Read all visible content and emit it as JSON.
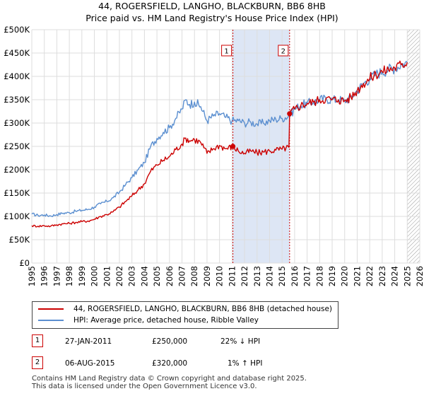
{
  "header": {
    "title": "44, ROGERSFIELD, LANGHO, BLACKBURN, BB6 8HB",
    "subtitle": "Price paid vs. HM Land Registry's House Price Index (HPI)"
  },
  "colors": {
    "red": "#cc0000",
    "blue": "#5b8fd0",
    "shade": "#dde6f5",
    "grid": "#dddddd"
  },
  "chart_data": {
    "type": "line",
    "title": "44, ROGERSFIELD, LANGHO, BLACKBURN, BB6 8HB",
    "xlim": [
      1995,
      2026
    ],
    "ylim": [
      0,
      500000
    ],
    "y_ticks": [
      0,
      50000,
      100000,
      150000,
      200000,
      250000,
      300000,
      350000,
      400000,
      450000,
      500000
    ],
    "y_tick_labels": [
      "£0",
      "£50K",
      "£100K",
      "£150K",
      "£200K",
      "£250K",
      "£300K",
      "£350K",
      "£400K",
      "£450K",
      "£500K"
    ],
    "x_ticks": [
      1995,
      1996,
      1997,
      1998,
      1999,
      2000,
      2001,
      2002,
      2003,
      2004,
      2005,
      2006,
      2007,
      2008,
      2009,
      2010,
      2011,
      2012,
      2013,
      2014,
      2015,
      2016,
      2017,
      2018,
      2019,
      2020,
      2021,
      2022,
      2023,
      2024,
      2025,
      2026
    ],
    "x_tick_labels": [
      "1995",
      "1996",
      "1997",
      "1998",
      "1999",
      "2000",
      "2001",
      "2002",
      "2003",
      "2004",
      "2005",
      "2006",
      "2007",
      "2008",
      "2009",
      "2010",
      "2011",
      "2012",
      "2013",
      "2014",
      "2015",
      "2016",
      "2017",
      "2018",
      "2019",
      "2020",
      "2021",
      "2022",
      "2023",
      "2024",
      "2025",
      "2026"
    ],
    "shaded_period": [
      2011.07,
      2015.6
    ],
    "future_hatch_from": 2025.0,
    "series": [
      {
        "name": "HPI: Average price, detached house, Ribble Valley",
        "color": "#5b8fd0",
        "x": [
          1995.0,
          1995.5,
          1996.0,
          1996.5,
          1997.0,
          1997.5,
          1998.0,
          1998.5,
          1999.0,
          1999.5,
          2000.0,
          2000.5,
          2001.0,
          2001.5,
          2002.0,
          2002.5,
          2003.0,
          2003.5,
          2004.0,
          2004.5,
          2005.0,
          2005.5,
          2006.0,
          2006.5,
          2007.0,
          2007.3,
          2007.6,
          2008.0,
          2008.5,
          2009.0,
          2009.5,
          2010.0,
          2010.5,
          2011.0,
          2011.5,
          2012.0,
          2012.5,
          2013.0,
          2013.5,
          2014.0,
          2014.5,
          2015.0,
          2015.6,
          2016.0,
          2016.5,
          2017.0,
          2017.5,
          2018.0,
          2018.5,
          2019.0,
          2019.5,
          2020.0,
          2020.5,
          2021.0,
          2021.5,
          2022.0,
          2022.5,
          2023.0,
          2023.5,
          2024.0,
          2024.5,
          2025.0
        ],
        "values": [
          105000,
          102000,
          103000,
          101000,
          104000,
          107000,
          108000,
          111000,
          113000,
          115000,
          120000,
          127000,
          132000,
          140000,
          152000,
          168000,
          183000,
          200000,
          215000,
          250000,
          267000,
          280000,
          290000,
          310000,
          330000,
          350000,
          340000,
          345000,
          335000,
          305000,
          315000,
          320000,
          312000,
          305000,
          305000,
          300000,
          302000,
          298000,
          300000,
          305000,
          308000,
          310000,
          316000,
          330000,
          338000,
          342000,
          345000,
          350000,
          352000,
          350000,
          350000,
          348000,
          355000,
          370000,
          385000,
          395000,
          405000,
          410000,
          415000,
          418000,
          425000,
          430000
        ]
      },
      {
        "name": "44, ROGERSFIELD, LANGHO, BLACKBURN, BB6 8HB (detached house)",
        "color": "#cc0000",
        "x": [
          1995.0,
          1995.5,
          1996.0,
          1996.5,
          1997.0,
          1997.5,
          1998.0,
          1998.5,
          1999.0,
          1999.5,
          2000.0,
          2000.5,
          2001.0,
          2001.5,
          2002.0,
          2002.5,
          2003.0,
          2003.5,
          2004.0,
          2004.5,
          2005.0,
          2005.5,
          2006.0,
          2006.5,
          2007.0,
          2007.3,
          2007.6,
          2008.0,
          2008.5,
          2009.0,
          2009.5,
          2010.0,
          2010.5,
          2011.07,
          2011.5,
          2012.0,
          2012.5,
          2013.0,
          2013.5,
          2014.0,
          2014.5,
          2015.0,
          2015.55,
          2015.6,
          2016.0,
          2016.5,
          2017.0,
          2017.5,
          2018.0,
          2018.5,
          2019.0,
          2019.5,
          2020.0,
          2020.5,
          2021.0,
          2021.5,
          2022.0,
          2022.5,
          2023.0,
          2023.5,
          2024.0,
          2024.5,
          2025.0
        ],
        "values": [
          80000,
          79000,
          80000,
          79000,
          82000,
          84000,
          85000,
          87000,
          89000,
          90000,
          94000,
          100000,
          104000,
          110000,
          120000,
          132000,
          144000,
          157000,
          170000,
          197000,
          210000,
          220000,
          228000,
          243000,
          255000,
          268000,
          262000,
          265000,
          258000,
          235000,
          245000,
          252000,
          245000,
          250000,
          240000,
          235000,
          240000,
          236000,
          238000,
          240000,
          242000,
          244000,
          248000,
          320000,
          330000,
          338000,
          342000,
          345000,
          350000,
          352000,
          350000,
          350000,
          348000,
          355000,
          370000,
          385000,
          395000,
          405000,
          410000,
          415000,
          418000,
          425000,
          430000
        ]
      }
    ],
    "annotations": [
      {
        "label": "1",
        "x": 2011.07,
        "y": 250000
      },
      {
        "label": "2",
        "x": 2015.6,
        "y": 320000
      }
    ]
  },
  "legend": {
    "items": [
      {
        "label": "44, ROGERSFIELD, LANGHO, BLACKBURN, BB6 8HB (detached house)",
        "color": "#cc0000"
      },
      {
        "label": "HPI: Average price, detached house, Ribble Valley",
        "color": "#5b8fd0"
      }
    ]
  },
  "transactions": [
    {
      "num": "1",
      "date": "27-JAN-2011",
      "price": "£250,000",
      "hpi": "22% ↓ HPI"
    },
    {
      "num": "2",
      "date": "06-AUG-2015",
      "price": "£320,000",
      "hpi": "1% ↑ HPI"
    }
  ],
  "footer": {
    "line1": "Contains HM Land Registry data © Crown copyright and database right 2025.",
    "line2": "This data is licensed under the Open Government Licence v3.0."
  }
}
